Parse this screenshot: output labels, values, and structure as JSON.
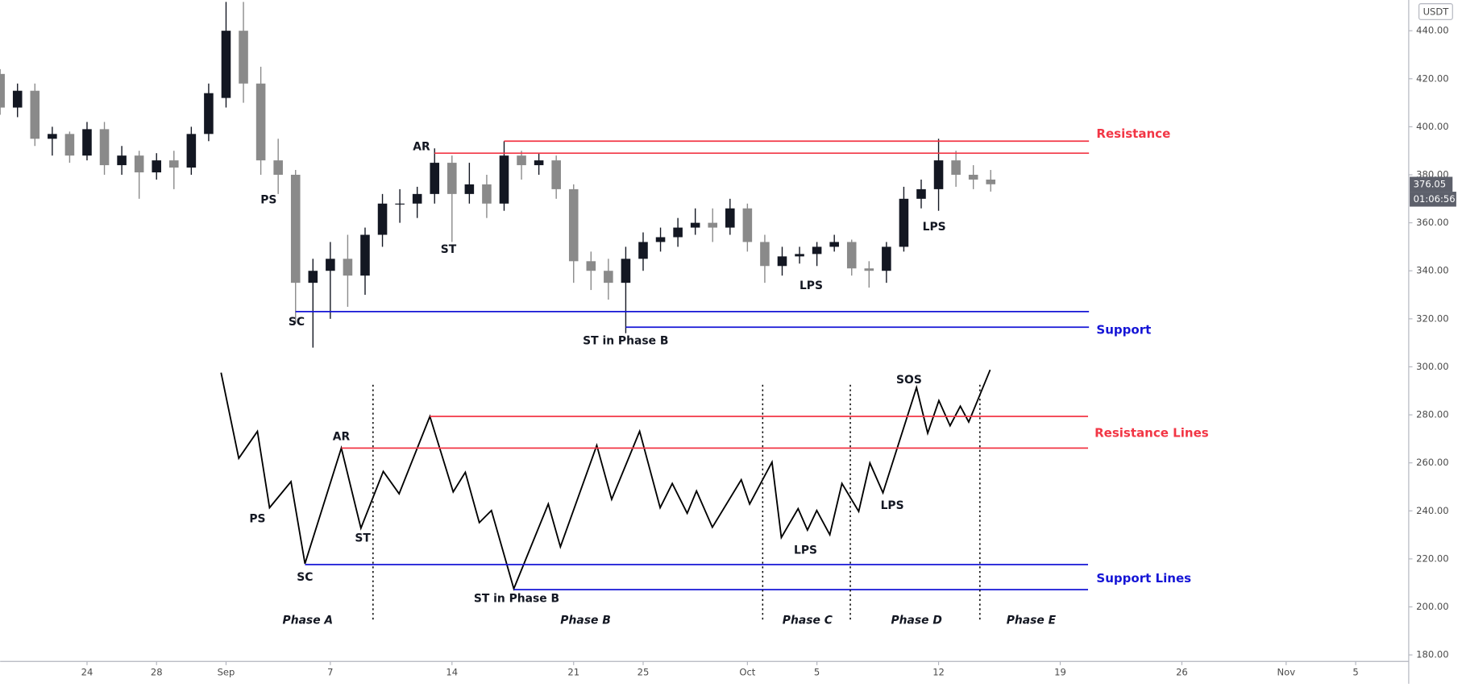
{
  "chart_data": {
    "type": "candlestick",
    "currency": "USDT",
    "last_price": 376.05,
    "countdown": "01:06:56",
    "x": [
      "Aug 19",
      "Aug 20",
      "Aug 21",
      "Aug 22",
      "Aug 23",
      "Aug 24",
      "Aug 25",
      "Aug 26",
      "Aug 27",
      "Aug 28",
      "Aug 29",
      "Aug 30",
      "Aug 31",
      "Sep 1",
      "Sep 2",
      "Sep 3",
      "Sep 4",
      "Sep 5",
      "Sep 6",
      "Sep 7",
      "Sep 8",
      "Sep 9",
      "Sep 10",
      "Sep 11",
      "Sep 12",
      "Sep 13",
      "Sep 14",
      "Sep 15",
      "Sep 16",
      "Sep 17",
      "Sep 18",
      "Sep 19",
      "Sep 20",
      "Sep 21",
      "Sep 22",
      "Sep 23",
      "Sep 24",
      "Sep 25",
      "Sep 26",
      "Sep 27",
      "Sep 28",
      "Sep 29",
      "Sep 30",
      "Oct 1",
      "Oct 2",
      "Oct 3",
      "Oct 4",
      "Oct 5",
      "Oct 6",
      "Oct 7",
      "Oct 8",
      "Oct 9",
      "Oct 10",
      "Oct 11",
      "Oct 12",
      "Oct 13",
      "Oct 14",
      "Oct 15"
    ],
    "series": [
      {
        "up_color": "#131722",
        "down_color": "#8a8a8a",
        "open": [
          422,
          408,
          415,
          395,
          397,
          388,
          399,
          384,
          388,
          381,
          386,
          383,
          397,
          412,
          440,
          418,
          386,
          380,
          335,
          340,
          345,
          338,
          355,
          368,
          368,
          372,
          385,
          372,
          376,
          368,
          388,
          384,
          386,
          374,
          344,
          340,
          335,
          345,
          352,
          354,
          358,
          360,
          358,
          366,
          352,
          342,
          346,
          347,
          350,
          352,
          341,
          340,
          350,
          370,
          374,
          386,
          380,
          378
        ],
        "high": [
          424,
          418,
          418,
          400,
          398,
          402,
          402,
          392,
          390,
          389,
          390,
          400,
          418,
          452,
          452,
          425,
          395,
          382,
          345,
          352,
          355,
          358,
          372,
          374,
          375,
          391,
          388,
          385,
          380,
          394,
          390,
          389,
          388,
          376,
          348,
          345,
          350,
          356,
          358,
          362,
          366,
          366,
          370,
          368,
          355,
          350,
          350,
          352,
          355,
          353,
          344,
          352,
          375,
          378,
          395,
          390,
          384,
          382
        ],
        "low": [
          405,
          404,
          392,
          388,
          385,
          386,
          380,
          380,
          370,
          378,
          374,
          380,
          394,
          408,
          410,
          380,
          372,
          318,
          308,
          320,
          325,
          330,
          350,
          360,
          362,
          368,
          352,
          368,
          362,
          365,
          378,
          380,
          370,
          335,
          332,
          328,
          314,
          340,
          348,
          350,
          355,
          352,
          355,
          348,
          335,
          338,
          343,
          342,
          348,
          338,
          333,
          335,
          348,
          366,
          365,
          375,
          374,
          373
        ],
        "close": [
          408,
          415,
          395,
          397,
          388,
          399,
          384,
          388,
          381,
          386,
          383,
          397,
          414,
          440,
          418,
          386,
          380,
          335,
          340,
          345,
          338,
          355,
          368,
          368,
          372,
          385,
          372,
          376,
          368,
          388,
          384,
          386,
          374,
          344,
          340,
          335,
          345,
          352,
          354,
          358,
          360,
          358,
          366,
          352,
          342,
          346,
          347,
          350,
          352,
          341,
          340,
          350,
          370,
          374,
          386,
          380,
          378,
          376.05
        ]
      }
    ],
    "xlim": [
      "Aug 19",
      "Nov 8"
    ],
    "xticks": [
      {
        "value": "Aug 24",
        "label": "24"
      },
      {
        "value": "Aug 28",
        "label": "28"
      },
      {
        "value": "Sep 1",
        "label": "Sep"
      },
      {
        "value": "Sep 7",
        "label": "7"
      },
      {
        "value": "Sep 14",
        "label": "14"
      },
      {
        "value": "Sep 21",
        "label": "21"
      },
      {
        "value": "Sep 25",
        "label": "25"
      },
      {
        "value": "Oct 1",
        "label": "Oct"
      },
      {
        "value": "Oct 5",
        "label": "5"
      },
      {
        "value": "Oct 12",
        "label": "12"
      },
      {
        "value": "Oct 19",
        "label": "19"
      },
      {
        "value": "Oct 26",
        "label": "26"
      },
      {
        "value": "Nov 1",
        "label": "Nov"
      },
      {
        "value": "Nov 5",
        "label": "5"
      }
    ],
    "ylim": [
      178,
      452
    ],
    "yticks": [
      {
        "value": 180,
        "label": "180.00"
      },
      {
        "value": 200,
        "label": "200.00"
      },
      {
        "value": 220,
        "label": "220.00"
      },
      {
        "value": 240,
        "label": "240.00"
      },
      {
        "value": 260,
        "label": "260.00"
      },
      {
        "value": 280,
        "label": "280.00"
      },
      {
        "value": 300,
        "label": "300.00"
      },
      {
        "value": 320,
        "label": "320.00"
      },
      {
        "value": 340,
        "label": "340.00"
      },
      {
        "value": 360,
        "label": "360.00"
      },
      {
        "value": 380,
        "label": "380.00"
      },
      {
        "value": 400,
        "label": "400.00"
      },
      {
        "value": 420,
        "label": "420.00"
      },
      {
        "value": 440,
        "label": "440.00"
      }
    ],
    "levels": [
      {
        "name": "Resistance",
        "value": 394,
        "from": "Sep 17",
        "color": "#f23645"
      },
      {
        "value": 389,
        "from": "Sep 13",
        "color": "#f23645"
      },
      {
        "name": "Support",
        "value": 323,
        "from": "Sep 5",
        "color": "#1515d6"
      },
      {
        "value": 316.5,
        "from": "Sep 24",
        "color": "#1515d6"
      }
    ],
    "annotations": [
      "AR",
      "PS",
      "SC",
      "ST",
      "ST in Phase B",
      "LPS",
      "LPS"
    ],
    "schematic": {
      "labels": [
        "AR",
        "PS",
        "SC",
        "ST",
        "ST in Phase B",
        "LPS",
        "LPS",
        "SOS"
      ],
      "resistance_label": "Resistance Lines",
      "support_label": "Support Lines",
      "phases": [
        "Phase A",
        "Phase B",
        "Phase C",
        "Phase D",
        "Phase E"
      ]
    }
  }
}
